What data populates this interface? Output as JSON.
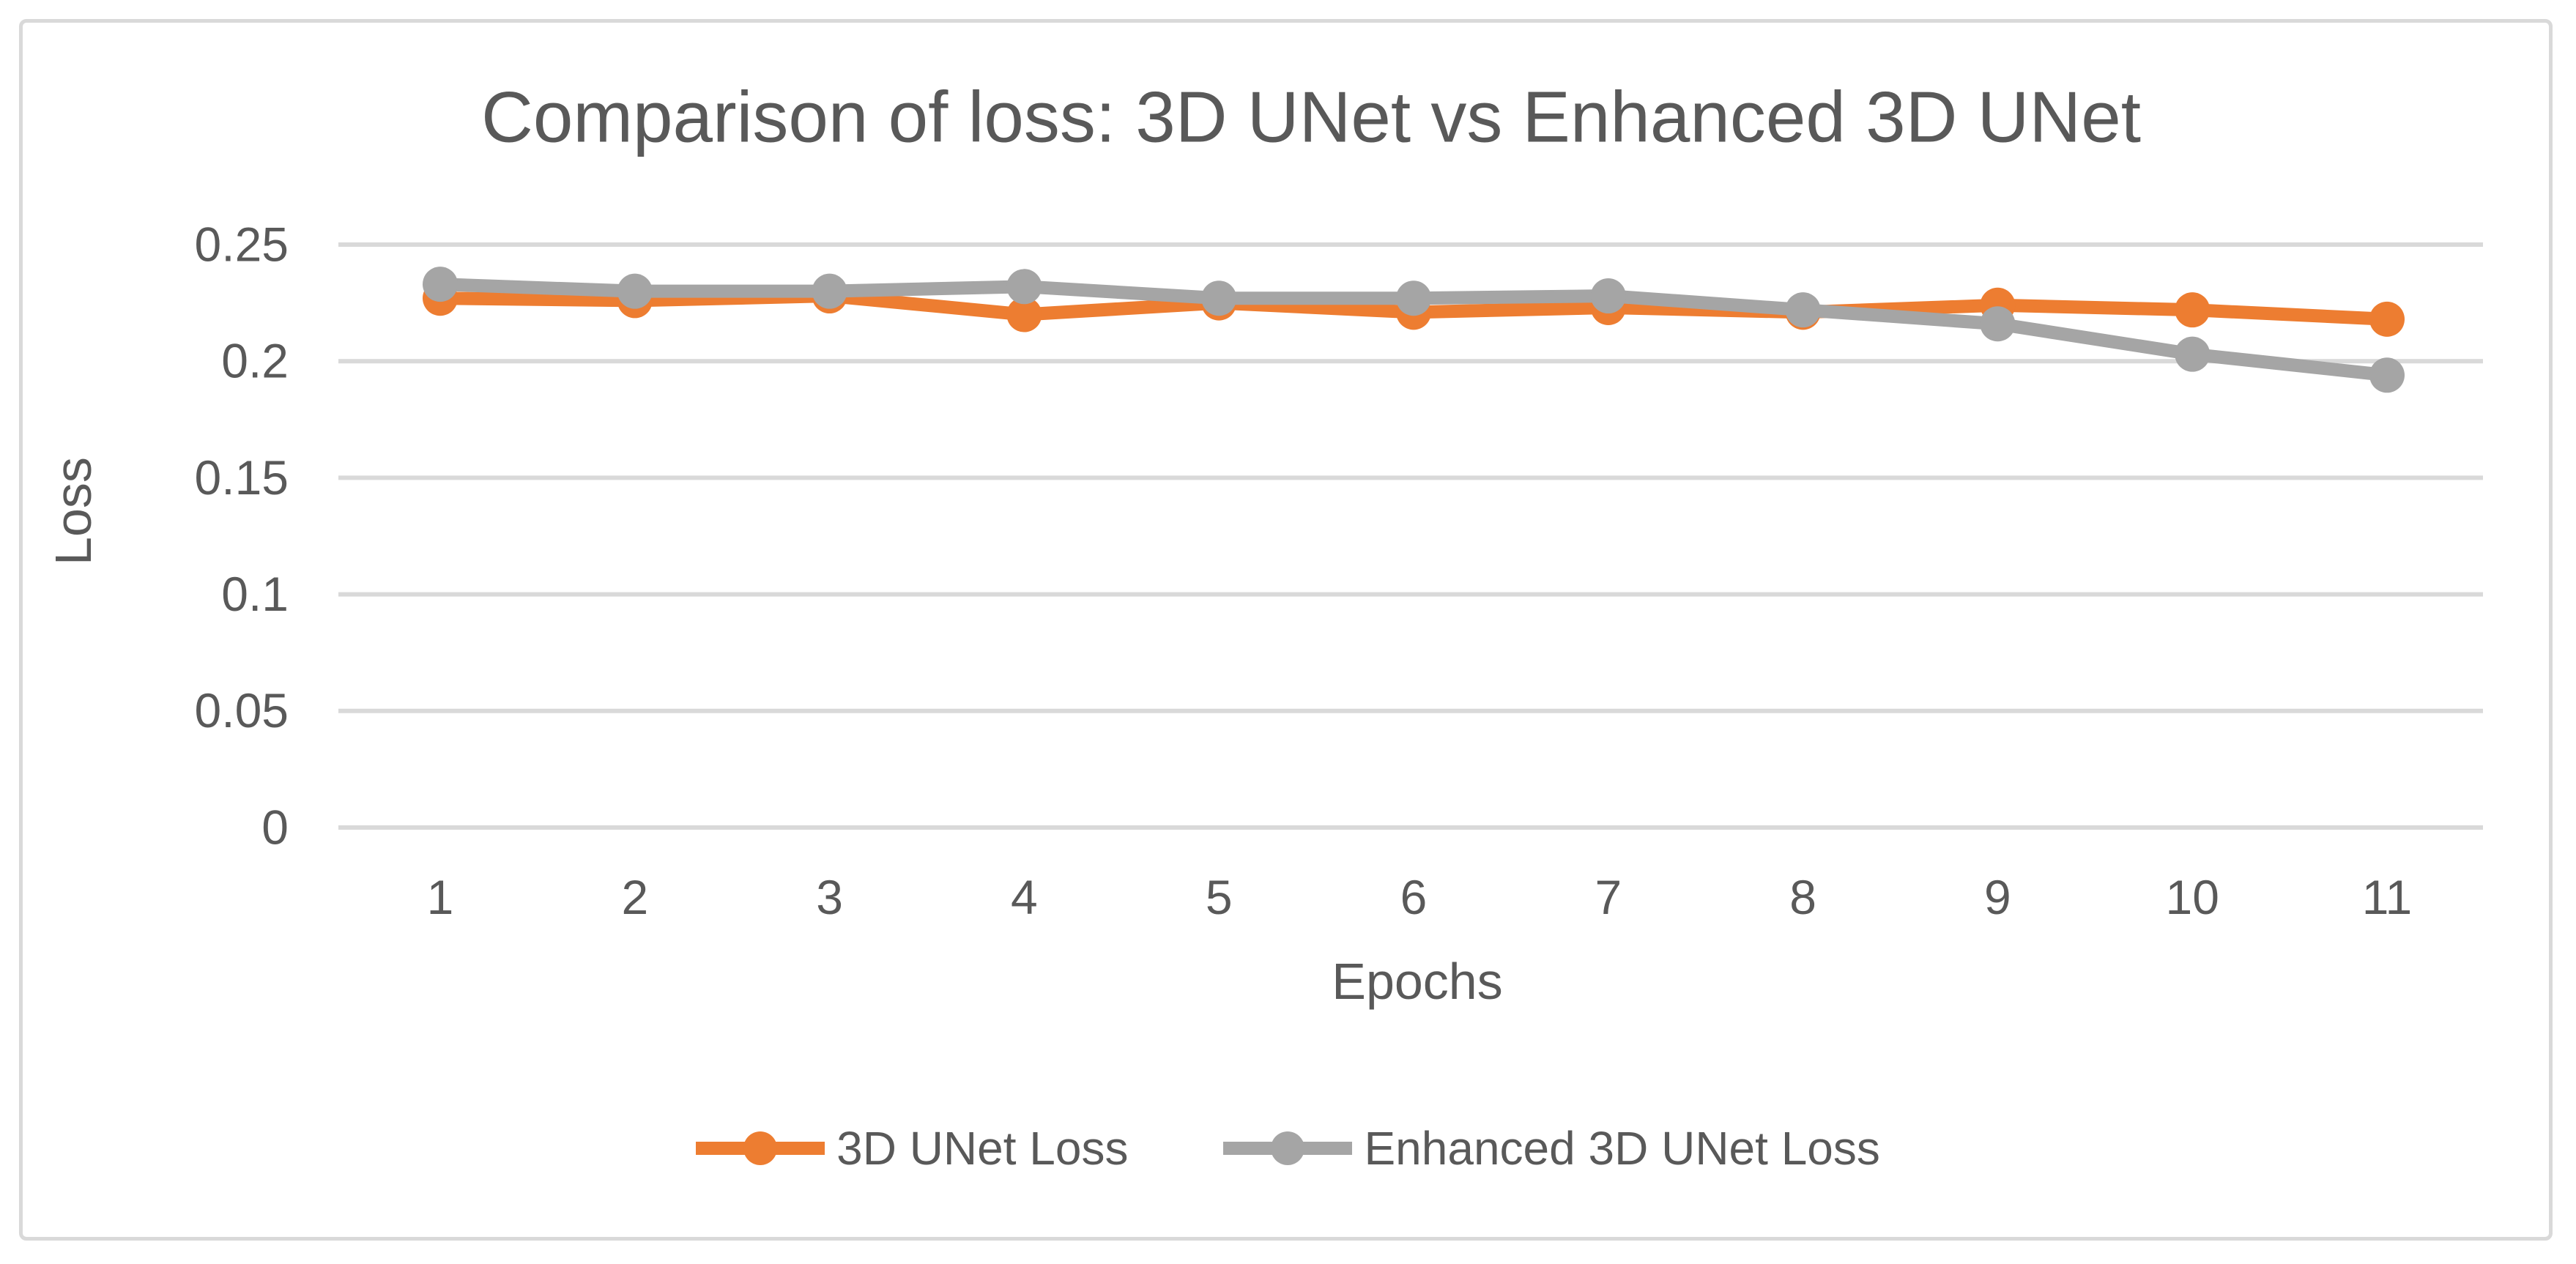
{
  "chart_data": {
    "type": "line",
    "title": "Comparison of loss: 3D UNet vs Enhanced 3D UNet",
    "xlabel": "Epochs",
    "ylabel": "Loss",
    "categories": [
      "1",
      "2",
      "3",
      "4",
      "5",
      "6",
      "7",
      "8",
      "9",
      "10",
      "11"
    ],
    "series": [
      {
        "name": "3D UNet Loss",
        "color": "#ED7D31",
        "values": [
          0.227,
          0.226,
          0.228,
          0.22,
          0.225,
          0.221,
          0.223,
          0.221,
          0.224,
          0.222,
          0.218
        ]
      },
      {
        "name": "Enhanced 3D UNet Loss",
        "color": "#A5A5A5",
        "values": [
          0.233,
          0.23,
          0.23,
          0.232,
          0.227,
          0.227,
          0.228,
          0.222,
          0.216,
          0.203,
          0.194
        ]
      }
    ],
    "ylim": [
      0,
      0.25
    ],
    "yticks": {
      "values": [
        0,
        0.05,
        0.1,
        0.15,
        0.2,
        0.25
      ],
      "labels": [
        "0",
        "0.05",
        "0.1",
        "0.15",
        "0.2",
        "0.25"
      ]
    },
    "grid": true,
    "legend_position": "bottom",
    "marker": "circle",
    "colors": {
      "text": "#595959",
      "gridline": "#D9D9D9",
      "frame_border": "#D9D9D9",
      "background": "#FFFFFF"
    }
  }
}
